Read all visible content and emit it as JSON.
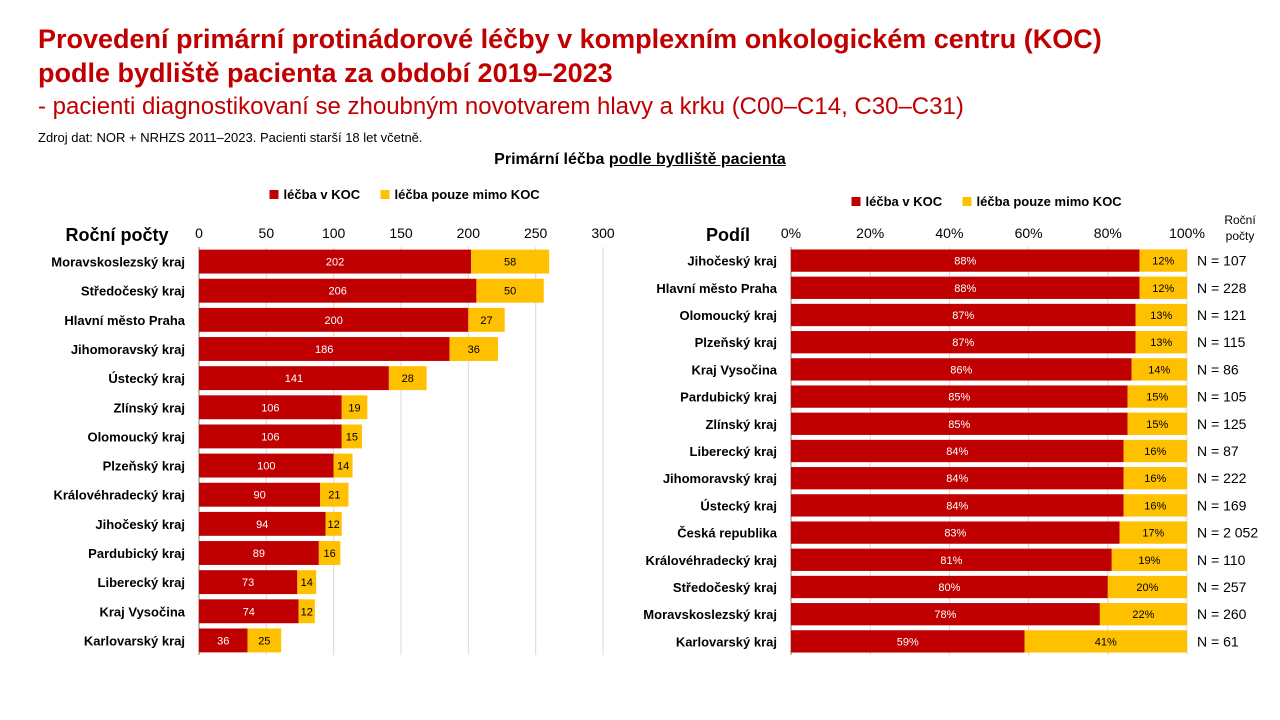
{
  "title_line1": "Provedení primární protinádorové léčby v komplexním onkologickém centru (KOC)",
  "title_line2": "podle bydliště pacienta za období 2019–2023",
  "subtitle": "- pacienti diagnostikovaní se zhoubným novotvarem hlavy a krku (C00–C14, C30–C31)",
  "source": "Zdroj dat: NOR + NRHZS 2011–2023. Pacienti starší 18 let včetně.",
  "section_title_plain": "Primární léčba ",
  "section_title_underlined": "podle bydliště pacienta",
  "colors": {
    "koc": "#c00000",
    "outside": "#ffc000",
    "title": "#c00000"
  },
  "chart_data": [
    {
      "type": "bar",
      "orientation": "horizontal",
      "stacked": true,
      "title": "Roční počty",
      "legend": [
        "léčba v KOC",
        "léčba pouze mimo KOC"
      ],
      "legend_position": "top",
      "xlim": [
        0,
        300
      ],
      "xticks": [
        "0",
        "50",
        "100",
        "150",
        "200",
        "250",
        "300"
      ],
      "grid": true,
      "categories": [
        "Moravskoslezský kraj",
        "Středočeský kraj",
        "Hlavní město Praha",
        "Jihomoravský kraj",
        "Ústecký kraj",
        "Zlínský kraj",
        "Olomoucký kraj",
        "Plzeňský kraj",
        "Královéhradecký kraj",
        "Jihočeský kraj",
        "Pardubický kraj",
        "Liberecký kraj",
        "Kraj Vysočina",
        "Karlovarský kraj"
      ],
      "series": [
        {
          "name": "léčba v KOC",
          "values": [
            202,
            206,
            200,
            186,
            141,
            106,
            106,
            100,
            90,
            94,
            89,
            73,
            74,
            36
          ]
        },
        {
          "name": "léčba pouze mimo KOC",
          "values": [
            58,
            50,
            27,
            36,
            28,
            19,
            15,
            14,
            21,
            12,
            16,
            14,
            12,
            25
          ]
        }
      ]
    },
    {
      "type": "bar",
      "orientation": "horizontal",
      "stacked": true,
      "title": "Podíl",
      "legend": [
        "léčba v KOC",
        "léčba pouze mimo KOC"
      ],
      "legend_position": "top",
      "xlim": [
        0,
        100
      ],
      "xticks": [
        "0%",
        "20%",
        "40%",
        "60%",
        "80%",
        "100%"
      ],
      "grid": true,
      "n_header": "Roční počty",
      "categories": [
        "Jihočeský kraj",
        "Hlavní město Praha",
        "Olomoucký kraj",
        "Plzeňský kraj",
        "Kraj Vysočina",
        "Pardubický kraj",
        "Zlínský kraj",
        "Liberecký kraj",
        "Jihomoravský kraj",
        "Ústecký kraj",
        "Česká republika",
        "Královéhradecký kraj",
        "Středočeský kraj",
        "Moravskoslezský kraj",
        "Karlovarský kraj"
      ],
      "series": [
        {
          "name": "léčba v KOC",
          "values": [
            88,
            88,
            87,
            87,
            86,
            85,
            85,
            84,
            84,
            84,
            83,
            81,
            80,
            78,
            59
          ],
          "labels": [
            "88%",
            "88%",
            "87%",
            "87%",
            "86%",
            "85%",
            "85%",
            "84%",
            "84%",
            "84%",
            "83%",
            "81%",
            "80%",
            "78%",
            "59%"
          ]
        },
        {
          "name": "léčba pouze mimo KOC",
          "values": [
            12,
            12,
            13,
            13,
            14,
            15,
            15,
            16,
            16,
            16,
            17,
            19,
            20,
            22,
            41
          ],
          "labels": [
            "12%",
            "12%",
            "13%",
            "13%",
            "14%",
            "15%",
            "15%",
            "16%",
            "16%",
            "16%",
            "17%",
            "19%",
            "20%",
            "22%",
            "41%"
          ]
        }
      ],
      "n_values": [
        "N = 107",
        "N = 228",
        "N = 121",
        "N = 115",
        "N = 86",
        "N = 105",
        "N = 125",
        "N = 87",
        "N = 222",
        "N = 169",
        "N = 2 052",
        "N = 110",
        "N = 257",
        "N = 260",
        "N = 61"
      ]
    }
  ]
}
